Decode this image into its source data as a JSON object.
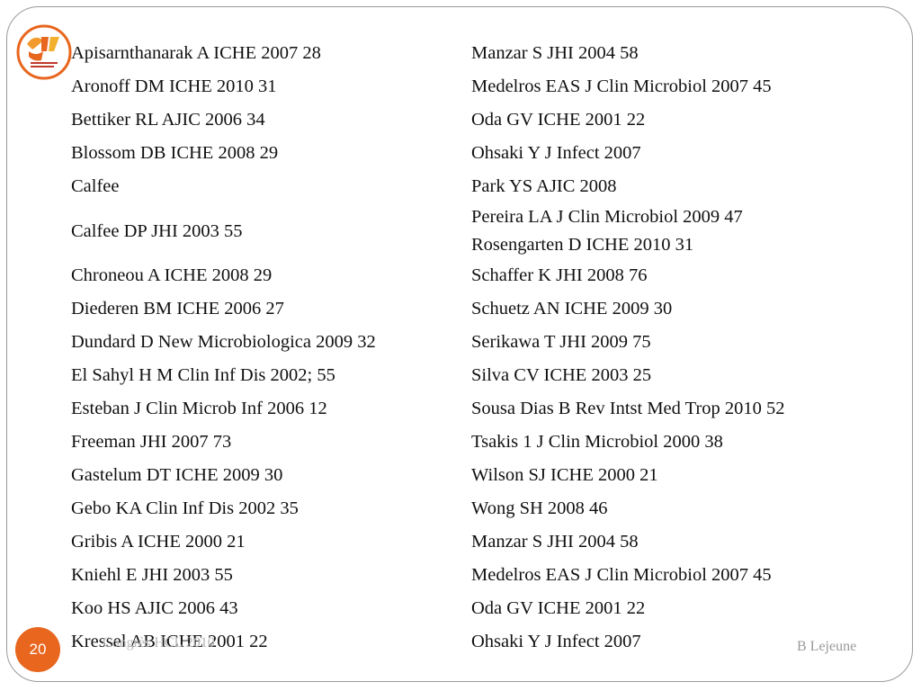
{
  "left_refs": [
    "Apisarnthanarak A ICHE 2007 28",
    "Aronoff DM ICHE 2010 31",
    "Bettiker RL AJIC 2006 34",
    "Blossom DB ICHE 2008 29",
    "Calfee",
    "Calfee DP JHI 2003 55",
    "Chroneou A ICHE 2008 29",
    "Diederen BM ICHE 2006 27",
    "Dundard D New Microbiologica 2009 32",
    "El Sahyl H M Clin Inf Dis 2002; 55",
    "Esteban J Clin Microb Inf 2006 12",
    "Freeman JHI 2007 73",
    "Gastelum DT ICHE 2009 30",
    "Gebo KA Clin Inf Dis 2002 35",
    "Gribis A ICHE 2000 21",
    "Kniehl E JHI 2003 55",
    "Koo HS AJIC 2006 43",
    "Kressel AB ICHE 2001 22"
  ],
  "right_refs": [
    "Manzar S JHI 2004 58",
    "Medelros EAS J Clin Microbiol 2007 45",
    "Oda GV ICHE 2001 22",
    "Ohsaki Y J Infect 2007",
    "Park YS AJIC 2008",
    "Pereira LA J Clin Microbiol 2009 47",
    "Rosengarten D ICHE 2010 31",
    "Schaffer K JHI 2008 76",
    "Schuetz AN ICHE 2009 30",
    "Serikawa T JHI 2009 75",
    "Silva CV ICHE 2003 25",
    "Sousa Dias B Rev Intst Med Trop 2010 52",
    "Tsakis 1 J Clin Microbiol 2000 38",
    "Wilson SJ ICHE  2000 21",
    "Wong SH 2008 46",
    "Manzar S JHI 2004 58",
    "Medelros EAS J Clin Microbiol 2007 45",
    "Oda GV ICHE 2001 22",
    "Ohsaki Y J Infect 2007"
  ],
  "footer": {
    "left": "Congrès HCL 2010",
    "right": "B Lejeune",
    "page_number": "20"
  },
  "colors": {
    "accent": "#e8661e",
    "frame": "#9a9a9a"
  }
}
